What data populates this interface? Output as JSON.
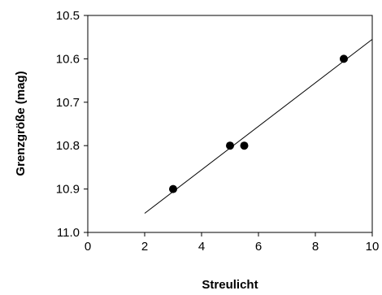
{
  "chart_data": {
    "type": "scatter",
    "title": "",
    "xlabel": "Streulicht",
    "ylabel": "Grenzgröße (mag)",
    "xlim": [
      0,
      10
    ],
    "ylim": [
      10.5,
      11.0
    ],
    "y_inverted": true,
    "grid": false,
    "legend": "none",
    "x_ticks": [
      0,
      2,
      4,
      6,
      8,
      10
    ],
    "x_tick_labels": [
      "0",
      "2",
      "4",
      "6",
      "8",
      "10"
    ],
    "y_ticks": [
      10.5,
      10.6,
      10.7,
      10.8,
      10.9,
      11.0
    ],
    "y_tick_labels": [
      "10.5",
      "10.6",
      "10.7",
      "10.8",
      "10.9",
      "11.0"
    ],
    "series": [
      {
        "kind": "points",
        "color": "#000000",
        "marker": "circle",
        "x": [
          3.0,
          5.0,
          5.5,
          9.0
        ],
        "y": [
          10.9,
          10.8,
          10.8,
          10.6
        ]
      },
      {
        "kind": "trendline",
        "color": "#000000",
        "x": [
          2.0,
          10.0
        ],
        "y": [
          10.956,
          10.555
        ]
      }
    ]
  }
}
